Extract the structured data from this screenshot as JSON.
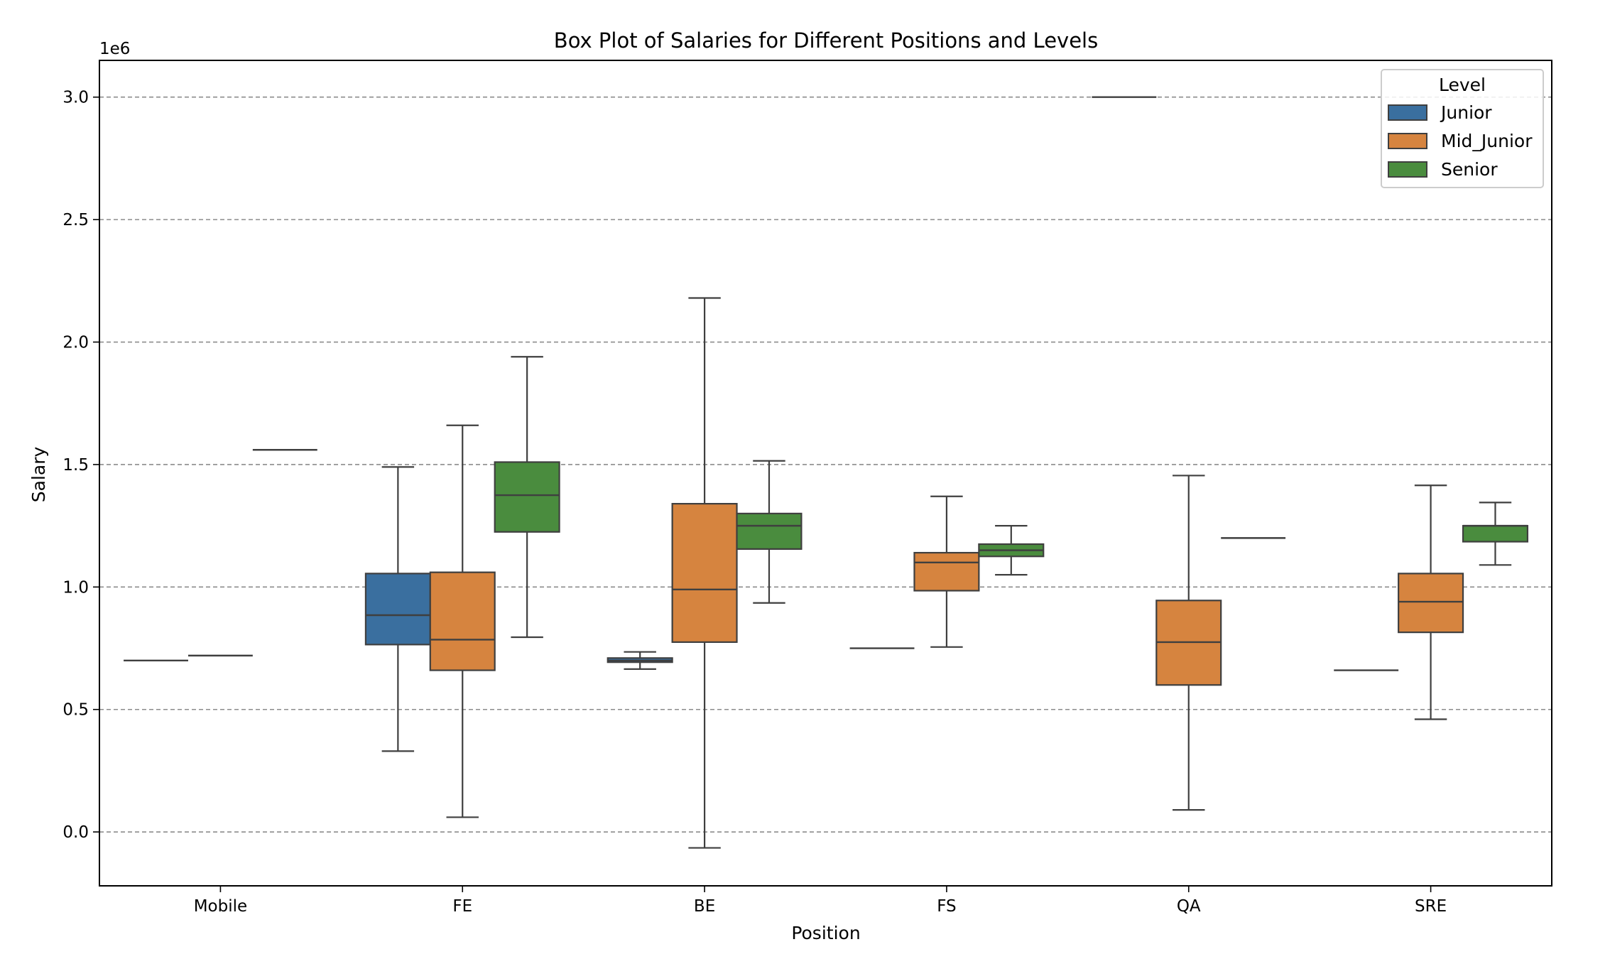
{
  "chart_data": {
    "type": "box",
    "title": "Box Plot of Salaries for Different Positions and Levels",
    "xlabel": "Position",
    "ylabel": "Salary",
    "y_multiplier_label": "1e6",
    "ylim": [
      -0.22,
      3.15
    ],
    "yticks": [
      0.0,
      0.5,
      1.0,
      1.5,
      2.0,
      2.5,
      3.0
    ],
    "ytick_labels": [
      "0.0",
      "0.5",
      "1.0",
      "1.5",
      "2.0",
      "2.5",
      "3.0"
    ],
    "grid": "y-dashed",
    "categories": [
      "Mobile",
      "FE",
      "BE",
      "FS",
      "QA",
      "SRE"
    ],
    "legend": {
      "title": "Level",
      "placement": "top-right",
      "entries": [
        "Junior",
        "Mid_Junior",
        "Senior"
      ]
    },
    "colors": {
      "Junior": "#3a6f9f",
      "Mid_Junior": "#d6843f",
      "Senior": "#4a8c3e",
      "line": "#3f3f3f"
    },
    "series": [
      {
        "name": "Junior",
        "boxes": [
          {
            "category": "Mobile",
            "min": 0.7,
            "q1": 0.7,
            "median": 0.7,
            "q3": 0.7,
            "max": 0.7
          },
          {
            "category": "FE",
            "min": 0.33,
            "q1": 0.765,
            "median": 0.885,
            "q3": 1.055,
            "max": 1.49
          },
          {
            "category": "BE",
            "min": 0.665,
            "q1": 0.693,
            "median": 0.7,
            "q3": 0.71,
            "max": 0.735
          },
          {
            "category": "FS",
            "min": 0.75,
            "q1": 0.75,
            "median": 0.75,
            "q3": 0.75,
            "max": 0.75
          },
          {
            "category": "QA",
            "min": 3.0,
            "q1": 3.0,
            "median": 3.0,
            "q3": 3.0,
            "max": 3.0
          },
          {
            "category": "SRE",
            "min": 0.66,
            "q1": 0.66,
            "median": 0.66,
            "q3": 0.66,
            "max": 0.66
          }
        ]
      },
      {
        "name": "Mid_Junior",
        "boxes": [
          {
            "category": "Mobile",
            "min": 0.72,
            "q1": 0.72,
            "median": 0.72,
            "q3": 0.72,
            "max": 0.72
          },
          {
            "category": "FE",
            "min": 0.06,
            "q1": 0.66,
            "median": 0.785,
            "q3": 1.06,
            "max": 1.66
          },
          {
            "category": "BE",
            "min": -0.065,
            "q1": 0.775,
            "median": 0.99,
            "q3": 1.34,
            "max": 2.18
          },
          {
            "category": "FS",
            "min": 0.755,
            "q1": 0.985,
            "median": 1.1,
            "q3": 1.14,
            "max": 1.37
          },
          {
            "category": "QA",
            "min": 0.09,
            "q1": 0.6,
            "median": 0.775,
            "q3": 0.945,
            "max": 1.455
          },
          {
            "category": "SRE",
            "min": 0.46,
            "q1": 0.815,
            "median": 0.94,
            "q3": 1.055,
            "max": 1.415
          }
        ]
      },
      {
        "name": "Senior",
        "boxes": [
          {
            "category": "Mobile",
            "min": 1.56,
            "q1": 1.56,
            "median": 1.56,
            "q3": 1.56,
            "max": 1.56
          },
          {
            "category": "FE",
            "min": 0.795,
            "q1": 1.225,
            "median": 1.375,
            "q3": 1.51,
            "max": 1.94
          },
          {
            "category": "BE",
            "min": 0.935,
            "q1": 1.155,
            "median": 1.25,
            "q3": 1.3,
            "max": 1.515
          },
          {
            "category": "FS",
            "min": 1.05,
            "q1": 1.125,
            "median": 1.15,
            "q3": 1.175,
            "max": 1.25
          },
          {
            "category": "QA",
            "min": 1.2,
            "q1": 1.2,
            "median": 1.2,
            "q3": 1.2,
            "max": 1.2
          },
          {
            "category": "SRE",
            "min": 1.09,
            "q1": 1.185,
            "median": 1.25,
            "q3": 1.25,
            "max": 1.345
          }
        ]
      }
    ]
  }
}
